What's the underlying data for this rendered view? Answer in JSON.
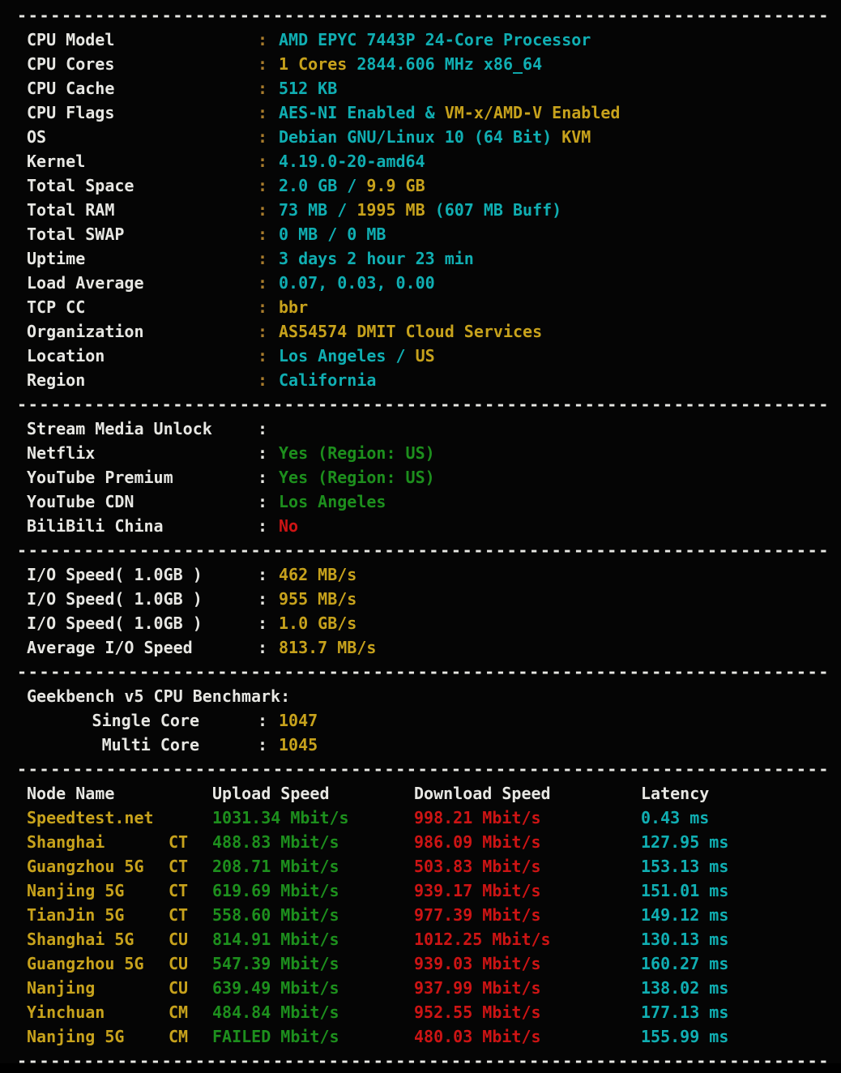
{
  "colors": {
    "background": "#050505",
    "white": "#e7e7e3",
    "cyan": "#10aeb2",
    "yellow": "#c7a21c",
    "green": "#1d8f1d",
    "red": "#cd1414",
    "colon_orange": "#a97c2c"
  },
  "separator": "-------------------------------------------------------------------------",
  "system_info": {
    "rows": [
      {
        "label": "CPU Model",
        "colon": "orange",
        "value": [
          {
            "text": "AMD EPYC 7443P 24-Core Processor",
            "color": "cyan"
          }
        ]
      },
      {
        "label": "CPU Cores",
        "colon": "orange",
        "value": [
          {
            "text": "1 Cores ",
            "color": "yellow"
          },
          {
            "text": "2844.606 MHz x86_64",
            "color": "cyan"
          }
        ]
      },
      {
        "label": "CPU Cache",
        "colon": "orange",
        "value": [
          {
            "text": "512 KB",
            "color": "cyan"
          }
        ]
      },
      {
        "label": "CPU Flags",
        "colon": "orange",
        "value": [
          {
            "text": "AES-NI Enabled & ",
            "color": "cyan"
          },
          {
            "text": "VM-x/AMD-V Enabled",
            "color": "yellow"
          }
        ]
      },
      {
        "label": "OS",
        "colon": "orange",
        "value": [
          {
            "text": "Debian GNU/Linux 10 (64 Bit) ",
            "color": "cyan"
          },
          {
            "text": "KVM",
            "color": "yellow"
          }
        ]
      },
      {
        "label": "Kernel",
        "colon": "orange",
        "value": [
          {
            "text": "4.19.0-20-amd64",
            "color": "cyan"
          }
        ]
      },
      {
        "label": "Total Space",
        "colon": "orange",
        "value": [
          {
            "text": "2.0 GB / ",
            "color": "cyan"
          },
          {
            "text": "9.9 GB",
            "color": "yellow"
          }
        ]
      },
      {
        "label": "Total RAM",
        "colon": "orange",
        "value": [
          {
            "text": "73 MB / ",
            "color": "cyan"
          },
          {
            "text": "1995 MB",
            "color": "yellow"
          },
          {
            "text": " (607 MB Buff)",
            "color": "cyan"
          }
        ]
      },
      {
        "label": "Total SWAP",
        "colon": "orange",
        "value": [
          {
            "text": "0 MB / 0 MB",
            "color": "cyan"
          }
        ]
      },
      {
        "label": "Uptime",
        "colon": "orange",
        "value": [
          {
            "text": "3 days 2 hour 23 min",
            "color": "cyan"
          }
        ]
      },
      {
        "label": "Load Average",
        "colon": "orange",
        "value": [
          {
            "text": "0.07, 0.03, 0.00",
            "color": "cyan"
          }
        ]
      },
      {
        "label": "TCP CC",
        "colon": "orange",
        "value": [
          {
            "text": "bbr",
            "color": "yellow"
          }
        ]
      },
      {
        "label": "Organization",
        "colon": "orange",
        "value": [
          {
            "text": "AS54574 DMIT Cloud Services",
            "color": "yellow"
          }
        ]
      },
      {
        "label": "Location",
        "colon": "orange",
        "value": [
          {
            "text": "Los Angeles / ",
            "color": "cyan"
          },
          {
            "text": "US",
            "color": "yellow"
          }
        ]
      },
      {
        "label": "Region",
        "colon": "orange",
        "value": [
          {
            "text": "California",
            "color": "cyan"
          }
        ]
      }
    ]
  },
  "stream_media": {
    "rows": [
      {
        "label": "Stream Media Unlock",
        "colon": "white",
        "value": []
      },
      {
        "label": "Netflix",
        "colon": "white",
        "value": [
          {
            "text": "Yes (Region: US)",
            "color": "green"
          }
        ]
      },
      {
        "label": "YouTube Premium",
        "colon": "white",
        "value": [
          {
            "text": "Yes (Region: US)",
            "color": "green"
          }
        ]
      },
      {
        "label": "YouTube CDN",
        "colon": "white",
        "value": [
          {
            "text": "Los Angeles",
            "color": "green"
          }
        ]
      },
      {
        "label": "BiliBili China",
        "colon": "white",
        "value": [
          {
            "text": "No",
            "color": "red"
          }
        ]
      }
    ]
  },
  "io_speed": {
    "rows": [
      {
        "label": "I/O Speed( 1.0GB )",
        "colon": "white",
        "value": [
          {
            "text": "462 MB/s",
            "color": "yellow"
          }
        ]
      },
      {
        "label": "I/O Speed( 1.0GB )",
        "colon": "white",
        "value": [
          {
            "text": "955 MB/s",
            "color": "yellow"
          }
        ]
      },
      {
        "label": "I/O Speed( 1.0GB )",
        "colon": "white",
        "value": [
          {
            "text": "1.0 GB/s",
            "color": "yellow"
          }
        ]
      },
      {
        "label": "Average I/O Speed",
        "colon": "white",
        "value": [
          {
            "text": "813.7 MB/s",
            "color": "yellow"
          }
        ]
      }
    ]
  },
  "geekbench": {
    "title": "Geekbench v5 CPU Benchmark:",
    "rows": [
      {
        "label": "Single Core",
        "score": "1047"
      },
      {
        "label": "Multi Core",
        "score": "1045"
      }
    ]
  },
  "speedtest": {
    "headers": [
      "Node Name",
      "Upload Speed",
      "Download Speed",
      "Latency"
    ],
    "rows": [
      {
        "node": "Speedtest.net",
        "carrier": "",
        "upload": "1031.34 Mbit/s",
        "download": "998.21 Mbit/s",
        "latency": "0.43 ms"
      },
      {
        "node": "Shanghai",
        "carrier": "CT",
        "upload": "488.83 Mbit/s",
        "download": "986.09 Mbit/s",
        "latency": "127.95 ms"
      },
      {
        "node": "Guangzhou 5G",
        "carrier": "CT",
        "upload": "208.71 Mbit/s",
        "download": "503.83 Mbit/s",
        "latency": "153.13 ms"
      },
      {
        "node": "Nanjing 5G",
        "carrier": "CT",
        "upload": "619.69 Mbit/s",
        "download": "939.17 Mbit/s",
        "latency": "151.01 ms"
      },
      {
        "node": "TianJin 5G",
        "carrier": "CT",
        "upload": "558.60 Mbit/s",
        "download": "977.39 Mbit/s",
        "latency": "149.12 ms"
      },
      {
        "node": "Shanghai 5G",
        "carrier": "CU",
        "upload": "814.91 Mbit/s",
        "download": "1012.25 Mbit/s",
        "latency": "130.13 ms"
      },
      {
        "node": "Guangzhou 5G",
        "carrier": "CU",
        "upload": "547.39 Mbit/s",
        "download": "939.03 Mbit/s",
        "latency": "160.27 ms"
      },
      {
        "node": "Nanjing",
        "carrier": "CU",
        "upload": "639.49 Mbit/s",
        "download": "937.99 Mbit/s",
        "latency": "138.02 ms"
      },
      {
        "node": "Yinchuan",
        "carrier": "CM",
        "upload": "484.84 Mbit/s",
        "download": "952.55 Mbit/s",
        "latency": "177.13 ms"
      },
      {
        "node": "Nanjing 5G",
        "carrier": "CM",
        "upload": "FAILED Mbit/s",
        "download": "480.03 Mbit/s",
        "latency": "155.99 ms"
      }
    ]
  }
}
